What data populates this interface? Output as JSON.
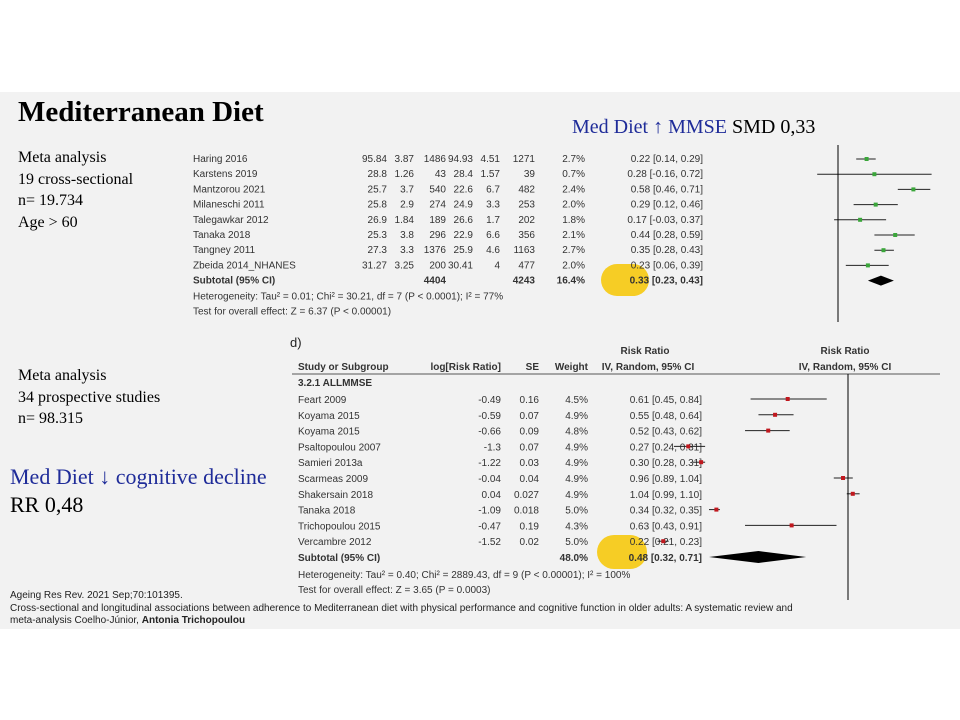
{
  "title": "Mediterranean Diet",
  "left_block_1": [
    "Meta analysis",
    "19 cross-sectional",
    "n= 19.734",
    "Age > 60"
  ],
  "left_block_2": [
    "Meta analysis",
    "34 prospective studies",
    "n= 98.315"
  ],
  "callout_1": {
    "blue": "Med Diet ↑ MMSE",
    "black": "SMD 0,33"
  },
  "callout_2": {
    "blue": "Med Diet ↓ cognitive decline",
    "black": "RR 0,48"
  },
  "citation": {
    "line1": "Ageing Res Rev. 2021 Sep;70:101395.",
    "line2": "Cross-sectional and longitudinal associations between adherence to Mediterranean diet with physical performance and cognitive function in older adults: A systematic review and",
    "line3_plain": "meta-analysis   Coelho-Júnior, ",
    "line3_bold": "Antonia Trichopoulou"
  },
  "highlight_color": "#f6c90e",
  "chart_data": [
    {
      "type": "forest",
      "rows": [
        {
          "study": "Haring 2016",
          "m1": "95.84",
          "sd1": "3.87",
          "n1": "1486",
          "m2": "94.93",
          "sd2": "4.51",
          "n2": "1271",
          "weight": "2.7%",
          "ci_text": "0.22 [0.14, 0.29]",
          "est": 0.22,
          "lo": 0.14,
          "hi": 0.29
        },
        {
          "study": "Karstens 2019",
          "m1": "28.8",
          "sd1": "1.26",
          "n1": "43",
          "m2": "28.4",
          "sd2": "1.57",
          "n2": "39",
          "weight": "0.7%",
          "ci_text": "0.28 [-0.16, 0.72]",
          "est": 0.28,
          "lo": -0.16,
          "hi": 0.72
        },
        {
          "study": "Mantzorou 2021",
          "m1": "25.7",
          "sd1": "3.7",
          "n1": "540",
          "m2": "22.6",
          "sd2": "6.7",
          "n2": "482",
          "weight": "2.4%",
          "ci_text": "0.58 [0.46, 0.71]",
          "est": 0.58,
          "lo": 0.46,
          "hi": 0.71
        },
        {
          "study": "Milaneschi 2011",
          "m1": "25.8",
          "sd1": "2.9",
          "n1": "274",
          "m2": "24.9",
          "sd2": "3.3",
          "n2": "253",
          "weight": "2.0%",
          "ci_text": "0.29 [0.12, 0.46]",
          "est": 0.29,
          "lo": 0.12,
          "hi": 0.46
        },
        {
          "study": "Talegawkar 2012",
          "m1": "26.9",
          "sd1": "1.84",
          "n1": "189",
          "m2": "26.6",
          "sd2": "1.7",
          "n2": "202",
          "weight": "1.8%",
          "ci_text": "0.17 [-0.03, 0.37]",
          "est": 0.17,
          "lo": -0.03,
          "hi": 0.37
        },
        {
          "study": "Tanaka 2018",
          "m1": "25.3",
          "sd1": "3.8",
          "n1": "296",
          "m2": "22.9",
          "sd2": "6.6",
          "n2": "356",
          "weight": "2.1%",
          "ci_text": "0.44 [0.28, 0.59]",
          "est": 0.44,
          "lo": 0.28,
          "hi": 0.59
        },
        {
          "study": "Tangney 2011",
          "m1": "27.3",
          "sd1": "3.3",
          "n1": "1376",
          "m2": "25.9",
          "sd2": "4.6",
          "n2": "1163",
          "weight": "2.7%",
          "ci_text": "0.35 [0.28, 0.43]",
          "est": 0.35,
          "lo": 0.28,
          "hi": 0.43
        },
        {
          "study": "Zbeida 2014_NHANES",
          "m1": "31.27",
          "sd1": "3.25",
          "n1": "200",
          "m2": "30.41",
          "sd2": "4",
          "n2": "477",
          "weight": "2.0%",
          "ci_text": "0.23 [0.06, 0.39]",
          "est": 0.23,
          "lo": 0.06,
          "hi": 0.39
        }
      ],
      "subtotal": {
        "label": "Subtotal (95% CI)",
        "n1": "4404",
        "n2": "4243",
        "weight": "16.4%",
        "ci_text": "0.33 [0.23, 0.43]",
        "est": 0.33,
        "lo": 0.23,
        "hi": 0.43
      },
      "heterogeneity": "Heterogeneity: Tau² = 0.01; Chi² = 30.21, df = 7 (P < 0.0001); I² = 77%",
      "overall_test": "Test for overall effect: Z = 6.37 (P < 0.00001)",
      "x_scale": "linear",
      "null_value": 0
    },
    {
      "type": "forest",
      "panel_label": "d)",
      "headers": {
        "study": "Study or Subgroup",
        "logrr": "log[Risk Ratio]",
        "se": "SE",
        "weight": "Weight",
        "rr_group": "Risk Ratio",
        "rr_sub": "IV, Random, 95% CI",
        "plot_group": "Risk Ratio",
        "plot_sub": "IV, Random, 95% CI"
      },
      "subgroup": "3.2.1 ALLMMSE",
      "rows": [
        {
          "study": "Feart 2009",
          "logrr": "-0.49",
          "se": "0.16",
          "weight": "4.5%",
          "ci_text": "0.61 [0.45, 0.84]",
          "est": 0.61,
          "lo": 0.45,
          "hi": 0.84
        },
        {
          "study": "Koyama 2015",
          "logrr": "-0.59",
          "se": "0.07",
          "weight": "4.9%",
          "ci_text": "0.55 [0.48, 0.64]",
          "est": 0.55,
          "lo": 0.48,
          "hi": 0.64
        },
        {
          "study": "Koyama 2015",
          "logrr": "-0.66",
          "se": "0.09",
          "weight": "4.8%",
          "ci_text": "0.52 [0.43, 0.62]",
          "est": 0.52,
          "lo": 0.43,
          "hi": 0.62
        },
        {
          "study": "Psaltopoulou 2007",
          "logrr": "-1.3",
          "se": "0.07",
          "weight": "4.9%",
          "ci_text": "0.27 [0.24, 0.31]",
          "est": 0.27,
          "lo": 0.24,
          "hi": 0.31
        },
        {
          "study": "Samieri 2013a",
          "logrr": "-1.22",
          "se": "0.03",
          "weight": "4.9%",
          "ci_text": "0.30 [0.28, 0.31]",
          "est": 0.3,
          "lo": 0.28,
          "hi": 0.31
        },
        {
          "study": "Scarmeas 2009",
          "logrr": "-0.04",
          "se": "0.04",
          "weight": "4.9%",
          "ci_text": "0.96 [0.89, 1.04]",
          "est": 0.96,
          "lo": 0.89,
          "hi": 1.04
        },
        {
          "study": "Shakersain 2018",
          "logrr": "0.04",
          "se": "0.027",
          "weight": "4.9%",
          "ci_text": "1.04 [0.99, 1.10]",
          "est": 1.04,
          "lo": 0.99,
          "hi": 1.1
        },
        {
          "study": "Tanaka 2018",
          "logrr": "-1.09",
          "se": "0.018",
          "weight": "5.0%",
          "ci_text": "0.34 [0.32, 0.35]",
          "est": 0.34,
          "lo": 0.32,
          "hi": 0.35
        },
        {
          "study": "Trichopoulou 2015",
          "logrr": "-0.47",
          "se": "0.19",
          "weight": "4.3%",
          "ci_text": "0.63 [0.43, 0.91]",
          "est": 0.63,
          "lo": 0.43,
          "hi": 0.91
        },
        {
          "study": "Vercambre 2012",
          "logrr": "-1.52",
          "se": "0.02",
          "weight": "5.0%",
          "ci_text": "0.22 [0.21, 0.23]",
          "est": 0.22,
          "lo": 0.21,
          "hi": 0.23
        }
      ],
      "subtotal": {
        "label": "Subtotal (95% CI)",
        "weight": "48.0%",
        "ci_text": "0.48 [0.32, 0.71]",
        "est": 0.48,
        "lo": 0.32,
        "hi": 0.71
      },
      "heterogeneity": "Heterogeneity: Tau² = 0.40; Chi² = 2889.43, df = 9 (P < 0.00001); I² = 100%",
      "overall_test": "Test for overall effect: Z = 3.65 (P = 0.0003)",
      "x_scale": "log",
      "null_value": 1
    }
  ]
}
